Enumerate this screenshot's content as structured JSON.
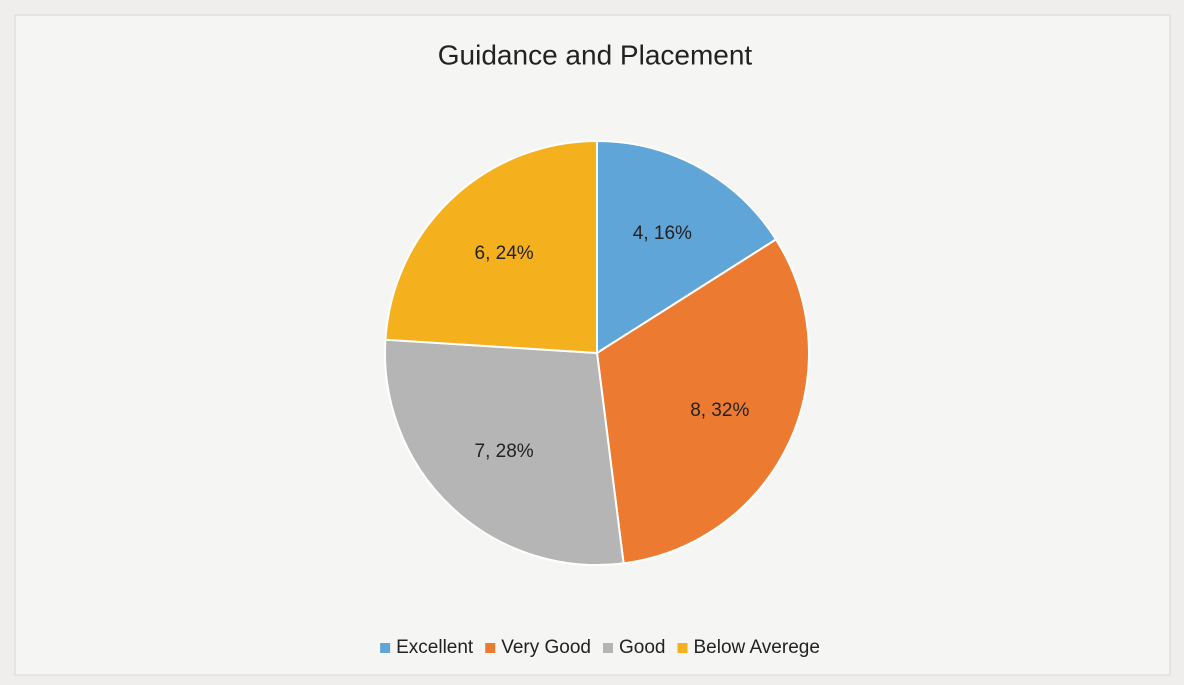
{
  "chart_data": {
    "type": "pie",
    "title": "Guidance and Placement",
    "categories": [
      "Excellent",
      "Very Good",
      "Good",
      "Below Averege"
    ],
    "values": [
      4,
      8,
      7,
      6
    ],
    "value_labels": [
      "4, 16%",
      "8, 32%",
      "7, 28%",
      "6, 24%"
    ],
    "colors": [
      "#5fa5d8",
      "#ec7b31",
      "#b5b5b5",
      "#f5b01e"
    ],
    "legend": "bottom"
  }
}
